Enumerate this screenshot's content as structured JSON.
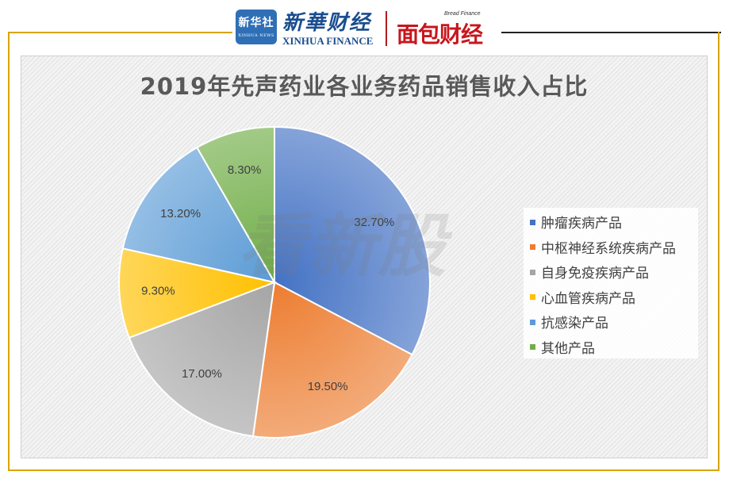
{
  "header": {
    "badge_cn": "新华社",
    "badge_en": "XINHUA NEWS",
    "brand_cn": "新華财经",
    "brand_en": "XINHUA FINANCE",
    "bread_en": "Bread Finance",
    "bread_cn": "面包财经"
  },
  "watermark": "看新股",
  "colors": {
    "frame": "#d9a400",
    "title": "#595959"
  },
  "chart_data": {
    "type": "pie",
    "title": "2019年先声药业各业务药品销售收入占比",
    "legend_position": "right",
    "start_angle_deg": 0,
    "direction": "clockwise",
    "slices": [
      {
        "label": "肿瘤疾病产品",
        "value": 32.7,
        "value_label": "32.70%",
        "color": "#4472c4"
      },
      {
        "label": "中枢神经系统疾病产品",
        "value": 19.5,
        "value_label": "19.50%",
        "color": "#ed7d31"
      },
      {
        "label": "自身免疫疾病产品",
        "value": 17.0,
        "value_label": "17.00%",
        "color": "#a5a5a5"
      },
      {
        "label": "心血管疾病产品",
        "value": 9.3,
        "value_label": "9.30%",
        "color": "#ffc000"
      },
      {
        "label": "抗感染产品",
        "value": 13.2,
        "value_label": "13.20%",
        "color": "#5b9bd5"
      },
      {
        "label": "其他产品",
        "value": 8.3,
        "value_label": "8.30%",
        "color": "#70ad47"
      }
    ]
  }
}
